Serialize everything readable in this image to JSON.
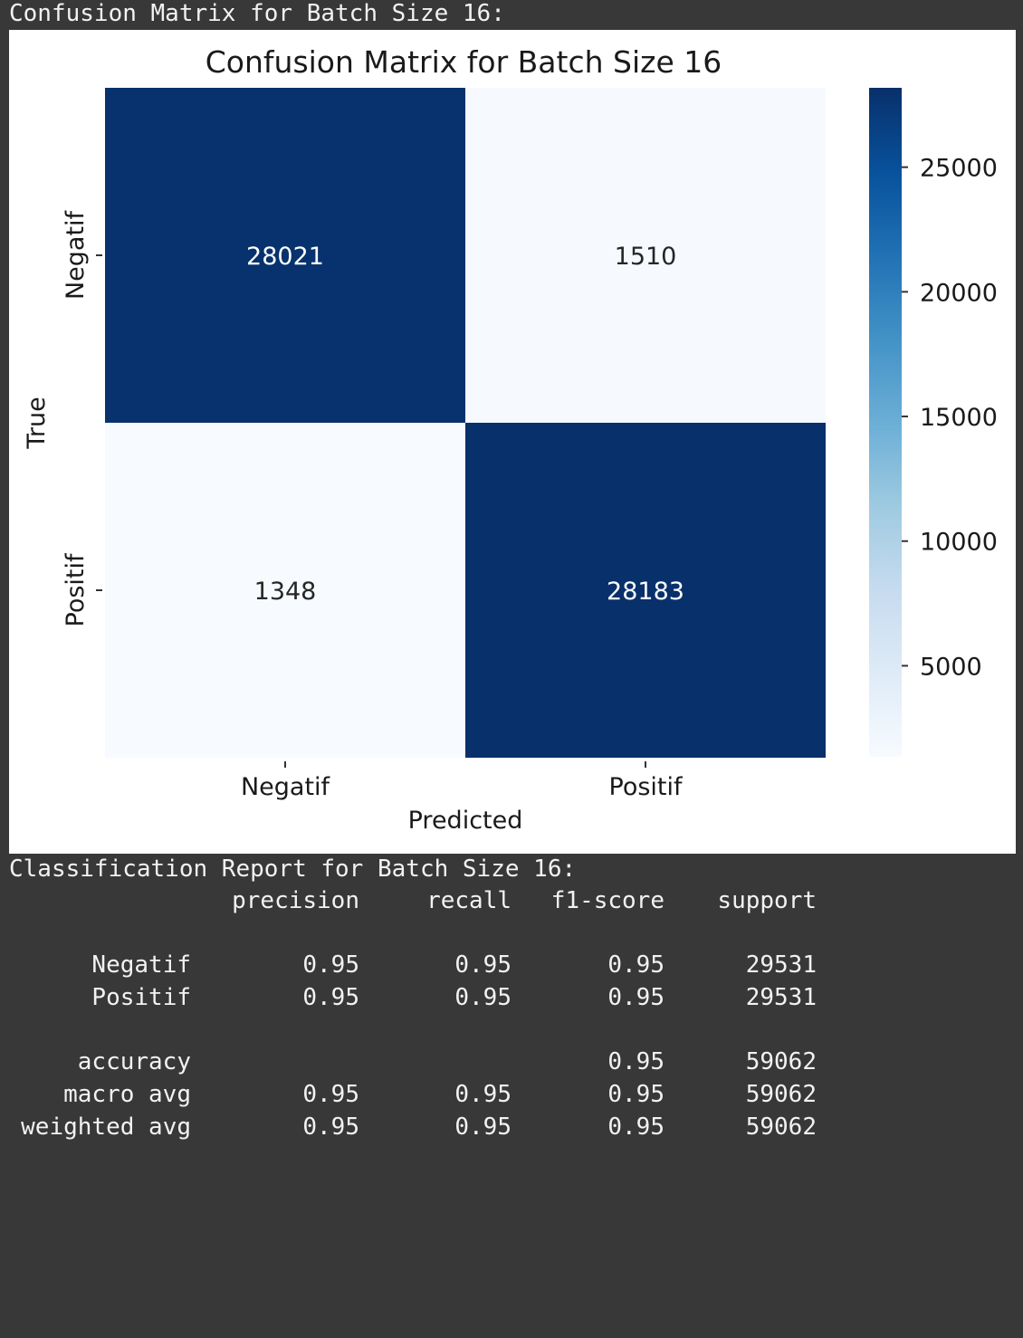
{
  "console": {
    "cm_header": "Confusion Matrix for Batch Size 16:",
    "report_header": "Classification Report for Batch Size 16:"
  },
  "chart_data": {
    "type": "heatmap",
    "title": "Confusion Matrix for Batch Size 16",
    "xlabel": "Predicted",
    "ylabel": "True",
    "x_categories": [
      "Negatif",
      "Positif"
    ],
    "y_categories": [
      "Negatif",
      "Positif"
    ],
    "values": [
      [
        28021,
        1510
      ],
      [
        1348,
        28183
      ]
    ],
    "colormap": "Blues",
    "colorbar": {
      "min": 1348,
      "max": 28183,
      "ticks": [
        25000,
        20000,
        15000,
        10000,
        5000
      ],
      "tick_labels": [
        "25000",
        "20000",
        "15000",
        "10000",
        "5000"
      ]
    },
    "colors": {
      "dark": "#08306b",
      "light": "#f7fbff",
      "mid": "#4292c6"
    },
    "grid": false,
    "legend": "colorbar-right"
  },
  "report": {
    "columns": [
      "precision",
      "recall",
      "f1-score",
      "support"
    ],
    "rows": [
      {
        "label": "Negatif",
        "precision": "0.95",
        "recall": "0.95",
        "f1": "0.95",
        "support": "29531"
      },
      {
        "label": "Positif",
        "precision": "0.95",
        "recall": "0.95",
        "f1": "0.95",
        "support": "29531"
      }
    ],
    "summary": [
      {
        "label": "accuracy",
        "precision": "",
        "recall": "",
        "f1": "0.95",
        "support": "59062"
      },
      {
        "label": "macro avg",
        "precision": "0.95",
        "recall": "0.95",
        "f1": "0.95",
        "support": "59062"
      },
      {
        "label": "weighted avg",
        "precision": "0.95",
        "recall": "0.95",
        "f1": "0.95",
        "support": "59062"
      }
    ]
  }
}
